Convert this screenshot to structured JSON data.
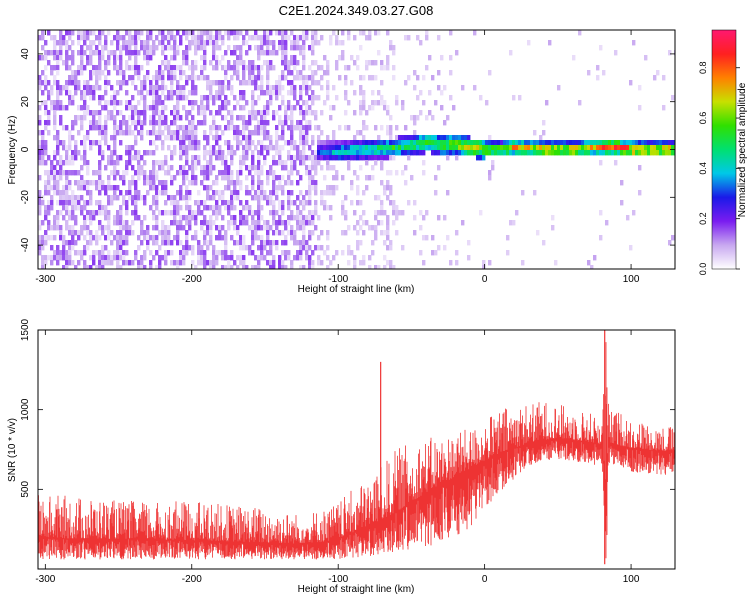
{
  "figure": {
    "title": "C2E1.2024.349.03.27.G08"
  },
  "chart_data": [
    {
      "type": "heatmap",
      "title": "C2E1.2024.349.03.27.G08",
      "xlabel": "Height of straight line (km)",
      "ylabel": "Frequency (Hz)",
      "xlim": [
        -305,
        130
      ],
      "ylim": [
        -50,
        50
      ],
      "xticks": [
        -300,
        -200,
        -100,
        0,
        100
      ],
      "yticks": [
        -40,
        -20,
        0,
        20,
        40
      ],
      "grid": false,
      "colorbar": {
        "label": "Normalized spectral amplitude",
        "range": [
          0,
          0.95
        ],
        "ticks": [
          0.0,
          0.2,
          0.4,
          0.6,
          0.8
        ],
        "colors": [
          "#ffffff",
          "#c8a8f0",
          "#7a1cf0",
          "#1a1ae8",
          "#00c8e8",
          "#00e070",
          "#30e000",
          "#c8e000",
          "#ff8000",
          "#ff2020",
          "#ff1870"
        ]
      },
      "regions": [
        {
          "name": "noise",
          "x_range": [
            -305,
            -110
          ],
          "description_level": 0.1
        },
        {
          "name": "signal",
          "x_range": [
            -115,
            130
          ],
          "frequency_hz_approx": 2
        }
      ],
      "signal_trace": {
        "x": [
          -115,
          -100,
          -80,
          -60,
          -40,
          -30,
          -20,
          -10,
          0,
          10,
          20,
          40,
          60,
          78,
          80,
          90,
          100,
          110,
          130
        ],
        "y": [
          0,
          0,
          1,
          2,
          4,
          3,
          3,
          2,
          1,
          1,
          2,
          1,
          1,
          2,
          2,
          2,
          1,
          1,
          1
        ],
        "amplitude": [
          0.3,
          0.45,
          0.5,
          0.55,
          0.6,
          0.65,
          0.7,
          0.75,
          0.75,
          0.7,
          0.75,
          0.8,
          0.8,
          0.75,
          0.85,
          0.9,
          0.9,
          0.85,
          0.8
        ]
      }
    },
    {
      "type": "line",
      "xlabel": "Height of straight line (km)",
      "ylabel": "SNR (10 * v/v)",
      "xlim": [
        -305,
        130
      ],
      "ylim": [
        0,
        1500
      ],
      "xticks": [
        -300,
        -200,
        -100,
        0,
        100
      ],
      "yticks": [
        500,
        1000,
        1500
      ],
      "grid": false,
      "color": "#ee3333",
      "series": [
        {
          "x": [
            -305,
            -280,
            -250,
            -220,
            -200,
            -180,
            -150,
            -130,
            -110,
            -100,
            -90,
            -80,
            -70,
            -60,
            -50,
            -40,
            -30,
            -20,
            -10,
            0,
            10,
            20,
            30,
            40,
            50,
            60,
            70,
            75,
            80,
            83,
            85,
            90,
            100,
            110,
            120,
            130
          ],
          "y": [
            200,
            190,
            190,
            185,
            180,
            175,
            165,
            160,
            170,
            190,
            230,
            270,
            310,
            360,
            420,
            480,
            530,
            580,
            630,
            680,
            720,
            760,
            790,
            810,
            820,
            810,
            800,
            790,
            780,
            500,
            790,
            780,
            760,
            750,
            740,
            740
          ],
          "spread_low": [
            60,
            60,
            60,
            60,
            60,
            60,
            60,
            60,
            60,
            60,
            70,
            80,
            90,
            100,
            120,
            140,
            160,
            200,
            250,
            380,
            480,
            560,
            650,
            680,
            690,
            680,
            660,
            650,
            640,
            40,
            650,
            650,
            610,
            600,
            590,
            590
          ],
          "spread_high": [
            470,
            460,
            430,
            420,
            430,
            410,
            390,
            350,
            380,
            420,
            500,
            570,
            650,
            760,
            800,
            820,
            840,
            860,
            880,
            940,
            1000,
            1040,
            1040,
            1060,
            1040,
            1010,
            990,
            980,
            980,
            1500,
            990,
            1000,
            950,
            920,
            900,
            900
          ]
        }
      ],
      "spikes": [
        {
          "x": -71,
          "y": 1300
        },
        {
          "x": 82,
          "y": 1500
        },
        {
          "x": 82,
          "y": 30
        }
      ]
    }
  ]
}
